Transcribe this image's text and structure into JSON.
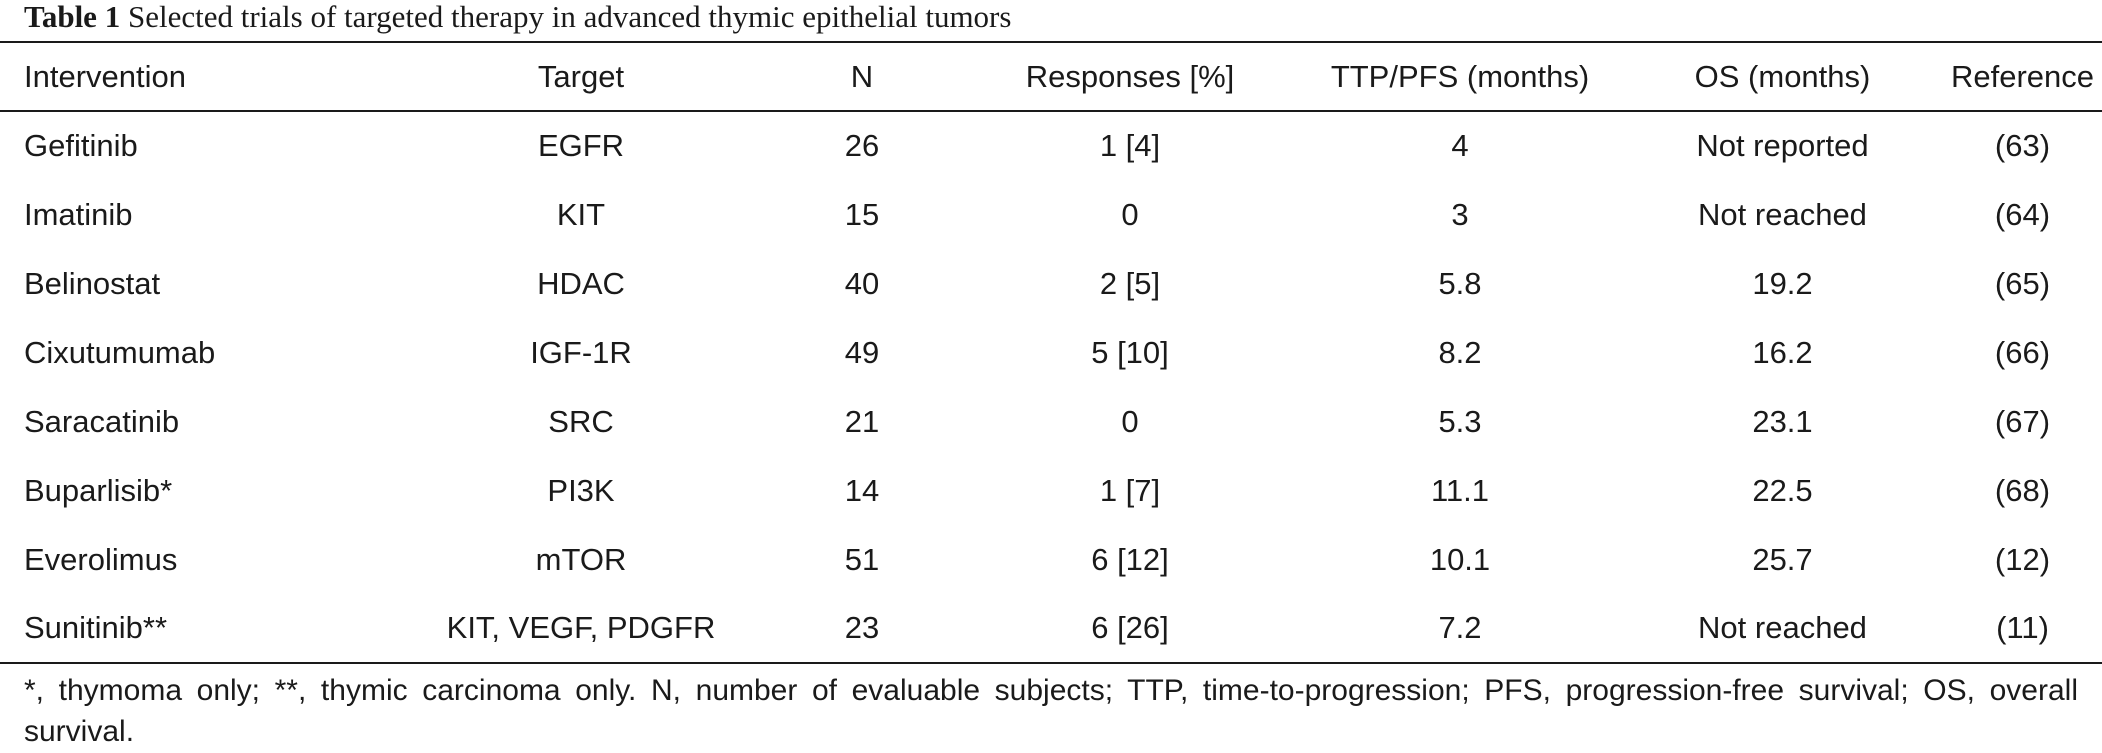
{
  "caption": {
    "label": "Table 1",
    "title": "Selected trials of targeted therapy in advanced thymic epithelial tumors"
  },
  "table": {
    "headers": [
      "Intervention",
      "Target",
      "N",
      "Responses [%]",
      "TTP/PFS (months)",
      "OS (months)",
      "Reference"
    ],
    "rows": [
      [
        "Gefitinib",
        "EGFR",
        "26",
        "1 [4]",
        "4",
        "Not reported",
        "(63)"
      ],
      [
        "Imatinib",
        "KIT",
        "15",
        "0",
        "3",
        "Not reached",
        "(64)"
      ],
      [
        "Belinostat",
        "HDAC",
        "40",
        "2 [5]",
        "5.8",
        "19.2",
        "(65)"
      ],
      [
        "Cixutumumab",
        "IGF-1R",
        "49",
        "5 [10]",
        "8.2",
        "16.2",
        "(66)"
      ],
      [
        "Saracatinib",
        "SRC",
        "21",
        "0",
        "5.3",
        "23.1",
        "(67)"
      ],
      [
        "Buparlisib*",
        "PI3K",
        "14",
        "1 [7]",
        "11.1",
        "22.5",
        "(68)"
      ],
      [
        "Everolimus",
        "mTOR",
        "51",
        "6 [12]",
        "10.1",
        "25.7",
        "(12)"
      ],
      [
        "Sunitinib**",
        "KIT, VEGF, PDGFR",
        "23",
        "6 [26]",
        "7.2",
        "Not reached",
        "(11)"
      ]
    ]
  },
  "footnote": "*, thymoma only; **, thymic carcinoma only. N, number of evaluable subjects; TTP, time-to-progression; PFS, progression-free survival; OS, overall survival."
}
